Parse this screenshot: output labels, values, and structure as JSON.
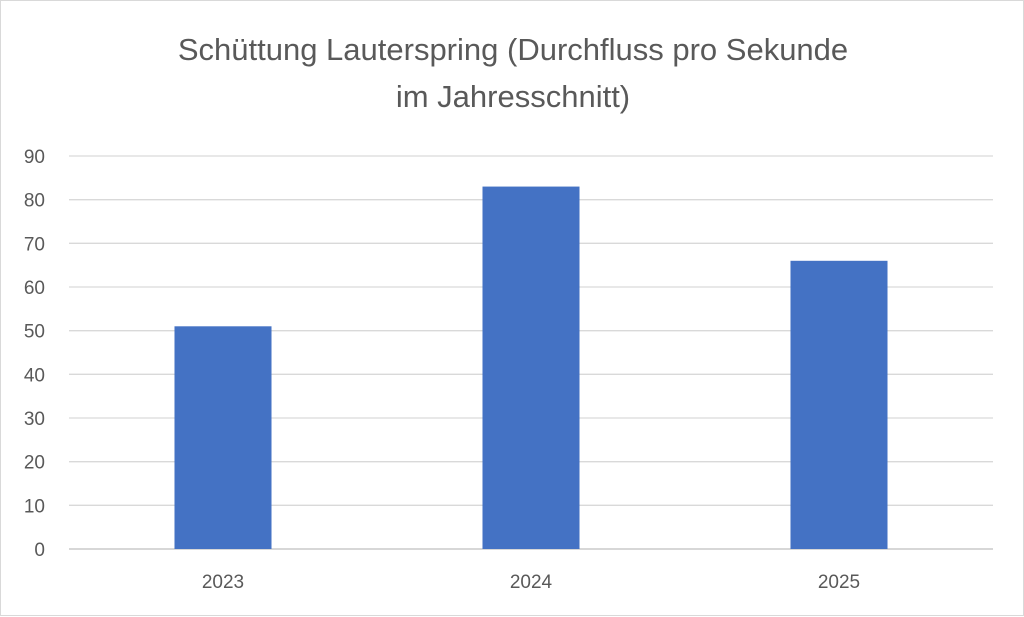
{
  "chart_data": {
    "type": "bar",
    "title_lines": [
      "Schüttung Lauterspring (Durchfluss pro Sekunde",
      "im Jahresschnitt)"
    ],
    "categories": [
      "2023",
      "2024",
      "2025"
    ],
    "values": [
      51,
      83,
      66
    ],
    "ylim": [
      0,
      90
    ],
    "yticks": [
      0,
      10,
      20,
      30,
      40,
      50,
      60,
      70,
      80,
      90
    ],
    "grid": true,
    "legend": "none",
    "bar_color": "#4472c4"
  }
}
